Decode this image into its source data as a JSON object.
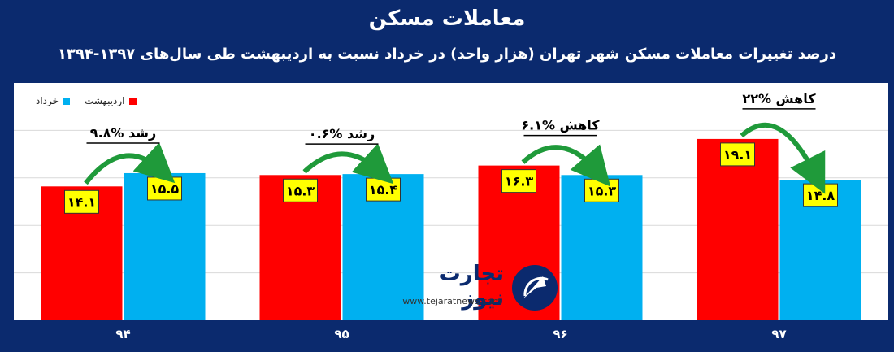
{
  "header": {
    "title": "معاملات مسکن",
    "subtitle": "درصد تغییرات معاملات مسکن شهر تهران (هزار واحد) در خرداد نسبت به اردیبهشت طی سال‌های ۱۳۹۷-۱۳۹۴"
  },
  "legend": {
    "ordibehesht": "اردیبهشت",
    "khordad": "خرداد"
  },
  "logo": {
    "name": "تجارت نیوز",
    "url": "www.tejaratnews.com"
  },
  "colors": {
    "background": "#0b2a6e",
    "ordibehesht": "#ff0000",
    "khordad": "#00b0f0",
    "label_box": "#ffff00",
    "arrow": "#1f9a3a"
  },
  "chart_data": {
    "type": "bar",
    "categories": [
      "۹۴",
      "۹۵",
      "۹۶",
      "۹۷"
    ],
    "series": [
      {
        "name": "اردیبهشت",
        "values": [
          14.1,
          15.3,
          16.3,
          19.1
        ],
        "labels": [
          "۱۴.۱",
          "۱۵.۳",
          "۱۶.۳",
          "۱۹.۱"
        ]
      },
      {
        "name": "خرداد",
        "values": [
          15.5,
          15.4,
          15.3,
          14.8
        ],
        "labels": [
          "۱۵.۵",
          "۱۵.۴",
          "۱۵.۳",
          "۱۴.۸"
        ]
      }
    ],
    "annotations": [
      "رشد %۹.۸",
      "رشد %۰.۶",
      "کاهش %۶.۱",
      "کاهش %۲۲"
    ],
    "ylim": [
      0,
      25
    ],
    "grid": true,
    "legend_position": "top-left"
  }
}
